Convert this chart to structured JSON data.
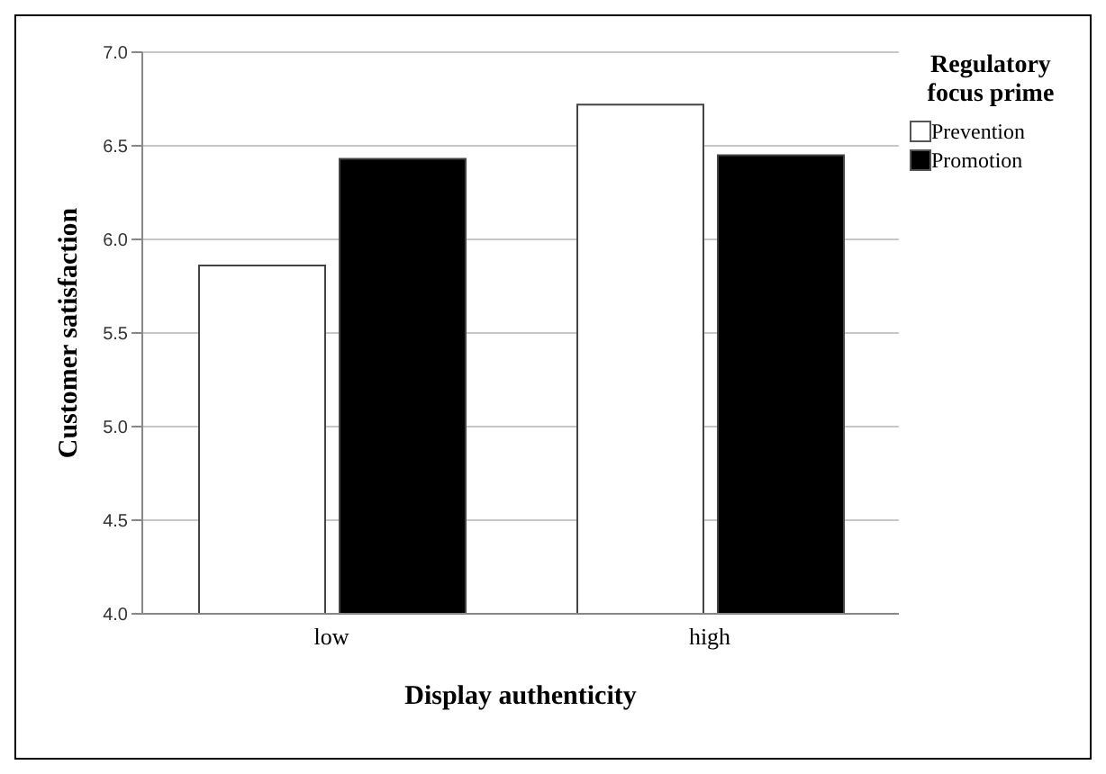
{
  "chart_data": {
    "type": "bar",
    "xlabel": "Display authenticity",
    "ylabel": "Customer satisfaction",
    "legend_title": "Regulatory focus prime",
    "categories": [
      "low",
      "high"
    ],
    "series": [
      {
        "name": "Prevention",
        "color": "#ffffff",
        "values": [
          5.86,
          6.72
        ]
      },
      {
        "name": "Promotion",
        "color": "#000000",
        "values": [
          6.43,
          6.45
        ]
      }
    ],
    "ylim": [
      4.0,
      7.0
    ],
    "yticks": [
      {
        "value": 4.0,
        "label": "4.0"
      },
      {
        "value": 4.5,
        "label": "4.5"
      },
      {
        "value": 5.0,
        "label": "5.0"
      },
      {
        "value": 5.5,
        "label": "5.5"
      },
      {
        "value": 6.0,
        "label": "6.0"
      },
      {
        "value": 6.5,
        "label": "6.5"
      },
      {
        "value": 7.0,
        "label": "7.0"
      }
    ],
    "grid": "y",
    "legend": "top right"
  }
}
